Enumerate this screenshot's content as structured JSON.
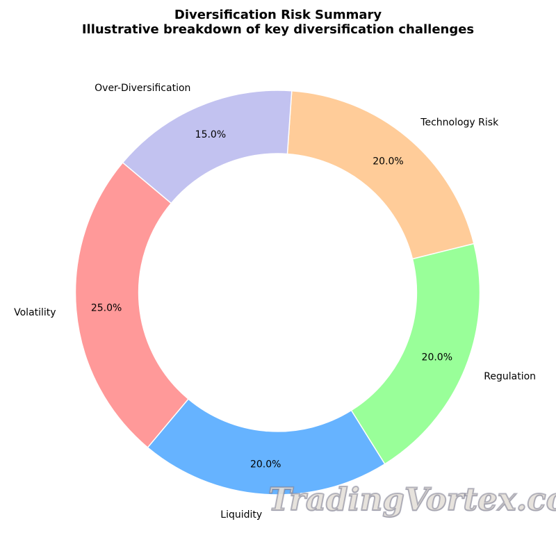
{
  "title": "Diversification Risk Summary",
  "subtitle": "Illustrative breakdown of key diversification challenges",
  "watermark": "TradingVortex.com",
  "colors": {
    "background": "#ffffff",
    "text": "#000000",
    "wedge_edge": "#ffffff"
  },
  "chart_data": {
    "type": "pie",
    "subtype": "donut",
    "title": "Diversification Risk Summary",
    "subtitle": "Illustrative breakdown of key diversification challenges",
    "start_angle": 86,
    "direction": "clockwise",
    "inner_radius_ratio": 0.687,
    "pct_distance": 0.85,
    "label_distance": 1.1,
    "legend": "none",
    "slices": [
      {
        "label": "Technology Risk",
        "value": 20.0,
        "pct_text": "20.0%",
        "color": "#ffcc99"
      },
      {
        "label": "Regulation",
        "value": 20.0,
        "pct_text": "20.0%",
        "color": "#99ff99"
      },
      {
        "label": "Liquidity",
        "value": 20.0,
        "pct_text": "20.0%",
        "color": "#66b3ff"
      },
      {
        "label": "Volatility",
        "value": 25.0,
        "pct_text": "25.0%",
        "color": "#ff9999"
      },
      {
        "label": "Over-Diversification",
        "value": 15.0,
        "pct_text": "15.0%",
        "color": "#c2c2f0"
      }
    ]
  }
}
